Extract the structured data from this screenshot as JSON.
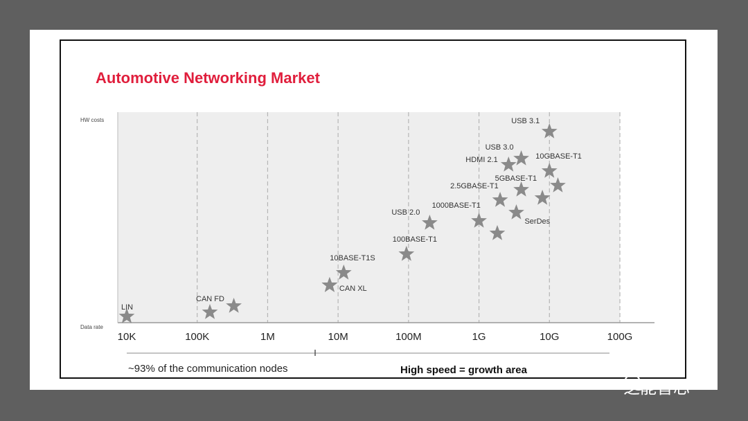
{
  "chart_data": {
    "type": "scatter",
    "title": "Automotive Networking Market",
    "ylabel": "HW costs",
    "xlabel": "Data rate",
    "x_scale": "log",
    "x_ticks": [
      "10K",
      "100K",
      "1M",
      "10M",
      "100M",
      "1G",
      "10G",
      "100G"
    ],
    "xlim_decades": [
      0,
      7
    ],
    "ylim": [
      0,
      100
    ],
    "marker": "star",
    "points": [
      {
        "label": "LIN",
        "x": 0.0,
        "y": 3
      },
      {
        "label": "CAN FD",
        "x": 1.18,
        "y": 5
      },
      {
        "label": "",
        "x": 1.52,
        "y": 8
      },
      {
        "label": "",
        "x": 2.88,
        "y": 18
      },
      {
        "label": "CAN XL",
        "x": 2.88,
        "y": 18
      },
      {
        "label": "10BASE-T1S",
        "x": 3.08,
        "y": 24
      },
      {
        "label": "100BASE-T1",
        "x": 3.97,
        "y": 33
      },
      {
        "label": "USB 2.0",
        "x": 4.3,
        "y": 48
      },
      {
        "label": "1000BASE-T1",
        "x": 5.0,
        "y": 49
      },
      {
        "label": "",
        "x": 5.26,
        "y": 43
      },
      {
        "label": "2.5GBASE-T1",
        "x": 5.3,
        "y": 59
      },
      {
        "label": "SerDes",
        "x": 5.53,
        "y": 53
      },
      {
        "label": "HDMI 2.1",
        "x": 5.42,
        "y": 76
      },
      {
        "label": "USB 3.0",
        "x": 5.6,
        "y": 79
      },
      {
        "label": "5GBASE-T1",
        "x": 5.6,
        "y": 64
      },
      {
        "label": "",
        "x": 5.9,
        "y": 60
      },
      {
        "label": "10GBASE-T1",
        "x": 6.0,
        "y": 73
      },
      {
        "label": "",
        "x": 6.12,
        "y": 66
      },
      {
        "label": "USB 3.1",
        "x": 6.0,
        "y": 92
      }
    ]
  },
  "annotations": {
    "low_share": "~93% of the communication nodes",
    "high_speed": "High speed = growth area"
  },
  "watermark": "芝能智芯",
  "colors": {
    "title": "#e01e3c",
    "star": "#8a8a8a",
    "plot_bg": "#eeeeee"
  }
}
